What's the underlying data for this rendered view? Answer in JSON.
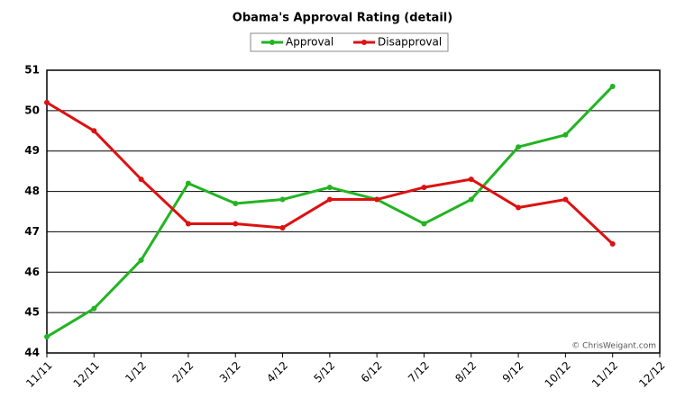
{
  "chart_data": {
    "type": "line",
    "title": "Obama's Approval Rating (detail)",
    "categories": [
      "11/11",
      "12/11",
      "1/12",
      "2/12",
      "3/12",
      "4/12",
      "5/12",
      "6/12",
      "7/12",
      "8/12",
      "9/12",
      "10/12",
      "11/12",
      "12/12"
    ],
    "series": [
      {
        "name": "Approval",
        "color": "#22b422",
        "values": [
          44.4,
          45.1,
          46.3,
          48.2,
          47.7,
          47.8,
          48.1,
          47.8,
          47.2,
          47.8,
          49.1,
          49.4,
          50.6,
          null
        ]
      },
      {
        "name": "Disapproval",
        "color": "#dd1111",
        "values": [
          50.2,
          49.5,
          48.3,
          47.2,
          47.2,
          47.1,
          47.8,
          47.8,
          48.1,
          48.3,
          47.6,
          47.8,
          46.7,
          null
        ]
      }
    ],
    "ylim": [
      44,
      51
    ],
    "yticks": [
      44,
      45,
      46,
      47,
      48,
      49,
      50,
      51
    ],
    "grid": true,
    "legend": "top",
    "annotation": "© ChrisWeigant.com"
  }
}
